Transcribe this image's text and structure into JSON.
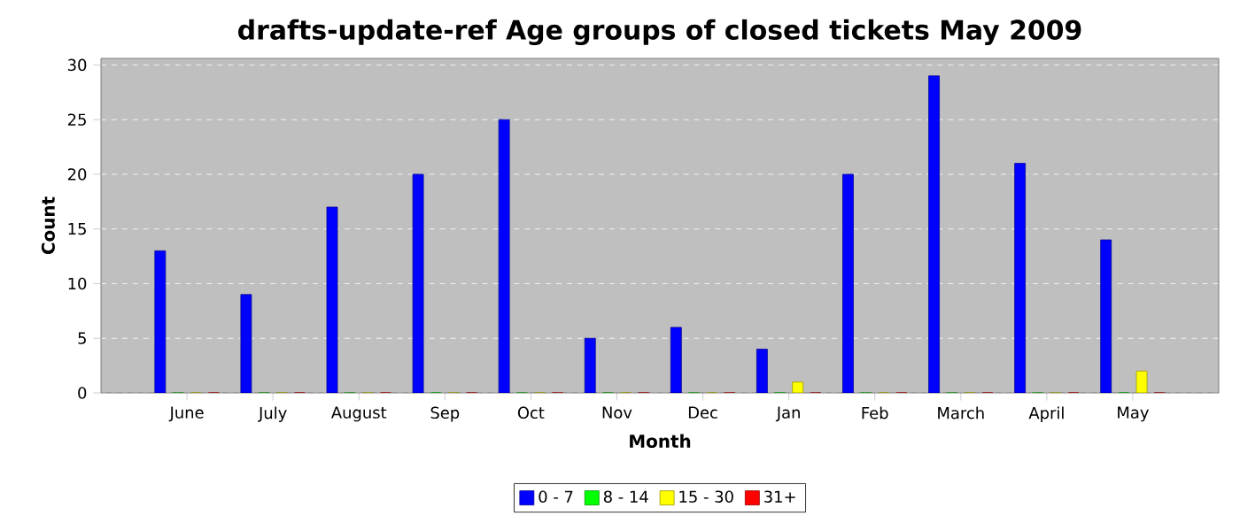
{
  "chart_data": {
    "type": "bar",
    "title": "drafts-update-ref Age groups of closed tickets May 2009",
    "xlabel": "Month",
    "ylabel": "Count",
    "categories": [
      "June",
      "July",
      "August",
      "Sep",
      "Oct",
      "Nov",
      "Dec",
      "Jan",
      "Feb",
      "March",
      "April",
      "May"
    ],
    "series": [
      {
        "name": "0 - 7",
        "color": "#0000ff",
        "values": [
          13,
          9,
          17,
          20,
          25,
          5,
          6,
          4,
          20,
          29,
          21,
          14
        ]
      },
      {
        "name": "8 - 14",
        "color": "#00ff00",
        "values": [
          0,
          0,
          0,
          0,
          0,
          0,
          0,
          0,
          0,
          0,
          0,
          0
        ]
      },
      {
        "name": "15 - 30",
        "color": "#ffff00",
        "values": [
          0,
          0,
          0,
          0,
          0,
          0,
          0,
          1,
          0,
          0,
          0,
          2
        ]
      },
      {
        "name": "31+",
        "color": "#ff0000",
        "values": [
          0,
          0,
          0,
          0,
          0,
          0,
          0,
          0,
          0,
          0,
          0,
          0
        ]
      }
    ],
    "ylim": [
      0,
      30.6
    ],
    "yticks": [
      0,
      5,
      10,
      15,
      20,
      25,
      30
    ],
    "grid": "y",
    "legend": "bottom"
  }
}
